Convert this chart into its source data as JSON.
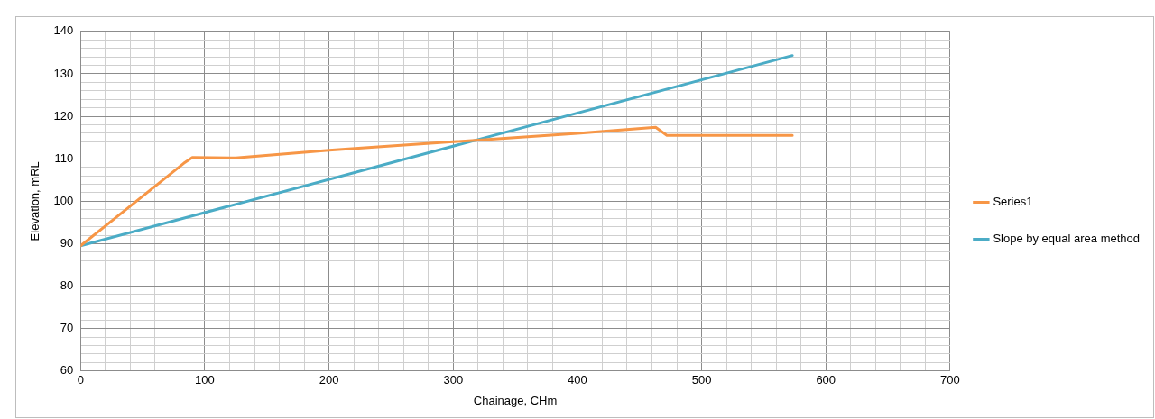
{
  "chart_data": {
    "type": "line",
    "xlabel": "Chainage, CHm",
    "ylabel": "Elevation, mRL",
    "xlim": [
      0,
      700
    ],
    "ylim": [
      60,
      140
    ],
    "xticks": [
      0,
      {
        "value": 20,
        "label": null
      },
      {
        "value": 40,
        "label": null
      },
      {
        "value": 60,
        "label": null
      },
      {
        "value": 80,
        "label": null
      },
      100,
      {
        "value": 120,
        "label": null
      },
      {
        "value": 140,
        "label": null
      },
      {
        "value": 160,
        "label": null
      },
      {
        "value": 180,
        "label": null
      },
      200,
      {
        "value": 220,
        "label": null
      },
      {
        "value": 240,
        "label": null
      },
      {
        "value": 260,
        "label": null
      },
      {
        "value": 280,
        "label": null
      },
      300,
      {
        "value": 320,
        "label": null
      },
      {
        "value": 340,
        "label": null
      },
      {
        "value": 360,
        "label": null
      },
      {
        "value": 380,
        "label": null
      },
      400,
      {
        "value": 420,
        "label": null
      },
      {
        "value": 440,
        "label": null
      },
      {
        "value": 460,
        "label": null
      },
      {
        "value": 480,
        "label": null
      },
      500,
      {
        "value": 520,
        "label": null
      },
      {
        "value": 540,
        "label": null
      },
      {
        "value": 560,
        "label": null
      },
      {
        "value": 580,
        "label": null
      },
      600,
      {
        "value": 620,
        "label": null
      },
      {
        "value": 640,
        "label": null
      },
      {
        "value": 660,
        "label": null
      },
      {
        "value": 680,
        "label": null
      },
      700
    ],
    "yticks": [
      60,
      {
        "value": 62,
        "label": null
      },
      {
        "value": 64,
        "label": null
      },
      {
        "value": 66,
        "label": null
      },
      {
        "value": 68,
        "label": null
      },
      70,
      {
        "value": 72,
        "label": null
      },
      {
        "value": 74,
        "label": null
      },
      {
        "value": 76,
        "label": null
      },
      {
        "value": 78,
        "label": null
      },
      80,
      {
        "value": 82,
        "label": null
      },
      {
        "value": 84,
        "label": null
      },
      {
        "value": 86,
        "label": null
      },
      {
        "value": 88,
        "label": null
      },
      90,
      {
        "value": 92,
        "label": null
      },
      {
        "value": 94,
        "label": null
      },
      {
        "value": 96,
        "label": null
      },
      {
        "value": 98,
        "label": null
      },
      100,
      {
        "value": 102,
        "label": null
      },
      {
        "value": 104,
        "label": null
      },
      {
        "value": 106,
        "label": null
      },
      {
        "value": 108,
        "label": null
      },
      110,
      {
        "value": 112,
        "label": null
      },
      {
        "value": 114,
        "label": null
      },
      {
        "value": 116,
        "label": null
      },
      {
        "value": 118,
        "label": null
      },
      120,
      {
        "value": 122,
        "label": null
      },
      {
        "value": 124,
        "label": null
      },
      {
        "value": 126,
        "label": null
      },
      {
        "value": 128,
        "label": null
      },
      130,
      {
        "value": 132,
        "label": null
      },
      {
        "value": 134,
        "label": null
      },
      {
        "value": 136,
        "label": null
      },
      {
        "value": 138,
        "label": null
      },
      140
    ],
    "grid": true,
    "legend": "right",
    "marker": "none",
    "line_style": "solid",
    "series": [
      {
        "name": "Series1",
        "color": "#f79646",
        "x": [
          0,
          83,
          90,
          125,
          200,
          300,
          400,
          463,
          472,
          573
        ],
        "values": [
          89.5,
          108.9,
          110.3,
          110.2,
          112,
          114,
          116,
          117.4,
          115.5,
          115.5
        ]
      },
      {
        "name": "Slope by equal area method",
        "color": "#4bacc6",
        "x": [
          0,
          573
        ],
        "values": [
          89.5,
          134.3
        ]
      }
    ]
  }
}
